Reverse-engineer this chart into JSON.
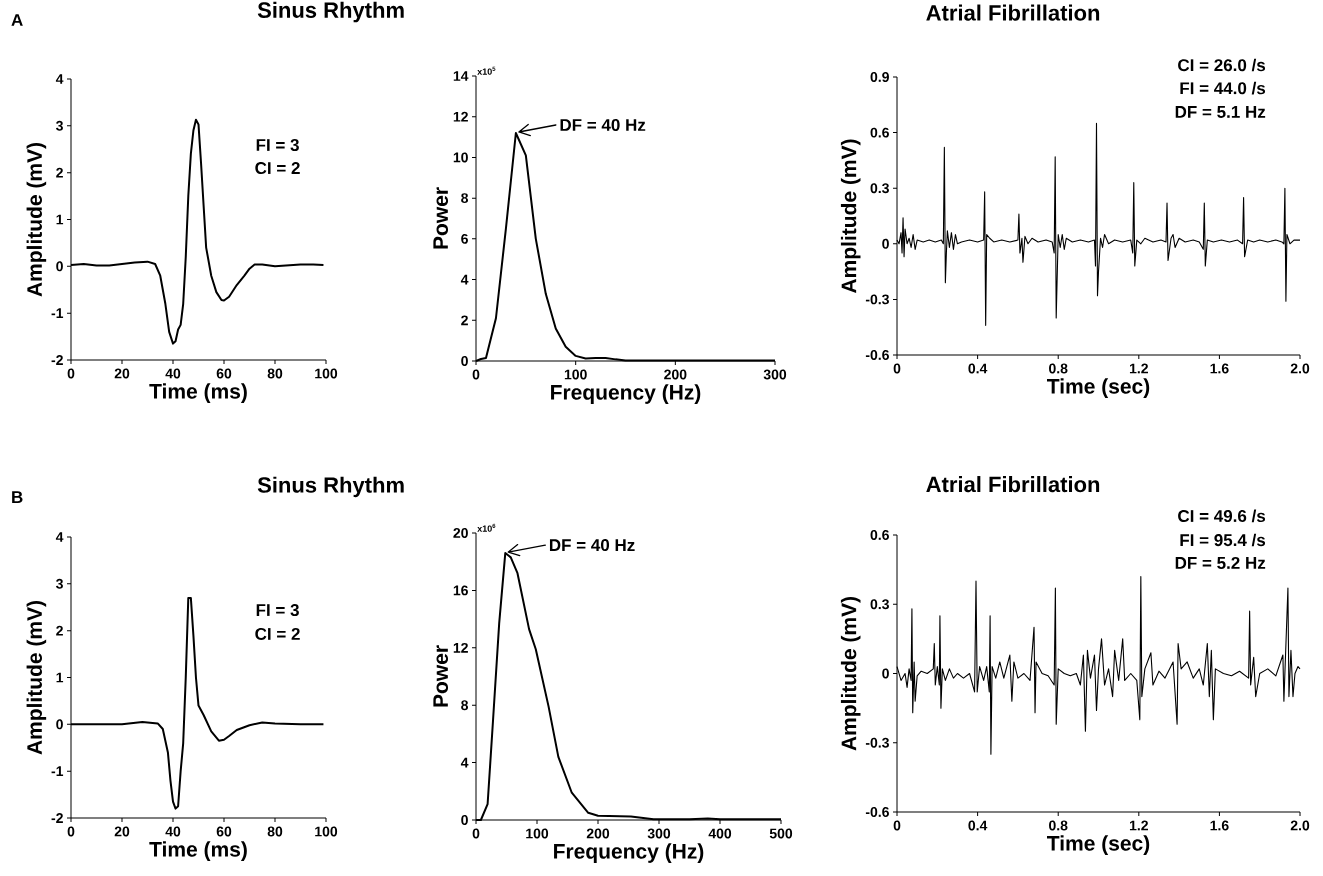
{
  "chart_data": [
    {
      "type": "line",
      "title": "Sinus Rhythm",
      "xlabel": "Time (ms)",
      "ylabel": "Amplitude (mV)",
      "annotations": [
        "A",
        "FI = 3",
        "CI = 2"
      ],
      "color": "#000000",
      "xlim": [
        0,
        100
      ],
      "ylim": [
        -2,
        4
      ],
      "xticks": [
        0,
        20,
        40,
        60,
        80,
        100
      ],
      "yticks": [
        -2,
        -1,
        0,
        1,
        2,
        3,
        4
      ],
      "x": [
        0,
        5,
        10,
        15,
        20,
        25,
        30,
        33,
        35,
        37,
        38.5,
        40,
        41,
        42,
        43,
        44,
        45,
        46,
        47,
        48,
        49,
        50,
        51,
        52,
        53,
        55,
        57,
        59,
        60,
        62,
        65,
        68,
        70,
        72,
        75,
        80,
        85,
        90,
        95,
        99
      ],
      "values": [
        0.03,
        0.05,
        0.02,
        0.02,
        0.05,
        0.08,
        0.1,
        0.05,
        -0.2,
        -0.8,
        -1.4,
        -1.65,
        -1.6,
        -1.35,
        -1.25,
        -0.8,
        0.2,
        1.5,
        2.4,
        2.9,
        3.13,
        3.03,
        2.2,
        1.3,
        0.4,
        -0.2,
        -0.55,
        -0.72,
        -0.73,
        -0.65,
        -0.4,
        -0.2,
        -0.05,
        0.04,
        0.04,
        0.0,
        0.02,
        0.04,
        0.04,
        0.03
      ]
    },
    {
      "type": "line",
      "xlabel": "Frequency (Hz)",
      "ylabel": "Power",
      "annotations": [
        "x10$^{5}$",
        {
          "text": "DF = 40 Hz",
          "x": 40,
          "y": 11.2
        }
      ],
      "color": "#000000",
      "xlim": [
        0,
        300
      ],
      "ylim": [
        0,
        14
      ],
      "xticks": [
        0,
        100,
        200,
        300
      ],
      "yticks": [
        0,
        2,
        4,
        6,
        8,
        10,
        12,
        14
      ],
      "x": [
        0,
        5,
        10,
        20,
        30,
        40,
        50,
        60,
        70,
        80,
        90,
        100,
        110,
        120,
        130,
        140,
        150,
        200,
        300
      ],
      "values": [
        0,
        0.1,
        0.15,
        2.1,
        6.5,
        11.2,
        10.1,
        6.0,
        3.3,
        1.6,
        0.7,
        0.25,
        0.12,
        0.15,
        0.15,
        0.08,
        0.03,
        0.02,
        0.02
      ]
    },
    {
      "type": "line",
      "title": "Atrial Fibrillation",
      "xlabel": "Time (sec)",
      "ylabel": "Amplitude (mV)",
      "annotations": [
        "CI = 26.0 /s",
        "FI = 44.0 /s",
        "DF = 5.1 Hz"
      ],
      "color": "#000000",
      "xlim": [
        0,
        2
      ],
      "ylim": [
        -0.6,
        0.9
      ],
      "xticks": [
        0,
        0.4,
        0.8,
        1.2,
        1.6,
        {
          "value": 2,
          "label": "2.0"
        }
      ],
      "yticks": [
        -0.6,
        -0.3,
        0,
        0.3,
        0.6,
        0.9
      ],
      "x": [
        0.0,
        0.01,
        0.02,
        0.025,
        0.03,
        0.035,
        0.04,
        0.05,
        0.06,
        0.07,
        0.08,
        0.09,
        0.1,
        0.13,
        0.16,
        0.19,
        0.22,
        0.23,
        0.235,
        0.24,
        0.245,
        0.25,
        0.26,
        0.27,
        0.28,
        0.29,
        0.3,
        0.32,
        0.36,
        0.4,
        0.43,
        0.435,
        0.44,
        0.445,
        0.46,
        0.48,
        0.52,
        0.56,
        0.6,
        0.605,
        0.61,
        0.62,
        0.625,
        0.635,
        0.65,
        0.67,
        0.7,
        0.74,
        0.77,
        0.78,
        0.785,
        0.79,
        0.8,
        0.81,
        0.82,
        0.83,
        0.84,
        0.87,
        0.91,
        0.95,
        0.98,
        0.985,
        0.99,
        0.995,
        1.0,
        1.01,
        1.02,
        1.03,
        1.05,
        1.08,
        1.12,
        1.16,
        1.17,
        1.175,
        1.18,
        1.19,
        1.21,
        1.23,
        1.27,
        1.31,
        1.335,
        1.34,
        1.345,
        1.36,
        1.37,
        1.38,
        1.4,
        1.43,
        1.47,
        1.5,
        1.52,
        1.525,
        1.53,
        1.54,
        1.57,
        1.61,
        1.65,
        1.69,
        1.715,
        1.72,
        1.725,
        1.74,
        1.77,
        1.8,
        1.84,
        1.88,
        1.91,
        1.92,
        1.925,
        1.93,
        1.935,
        1.95,
        1.97,
        2.0
      ],
      "values": [
        0.02,
        0.0,
        0.06,
        -0.05,
        0.14,
        -0.07,
        0.08,
        0.0,
        0.03,
        -0.02,
        0.05,
        -0.03,
        0.02,
        0.01,
        0.02,
        0.01,
        0.02,
        0.0,
        0.52,
        -0.21,
        -0.05,
        0.07,
        -0.02,
        0.06,
        -0.03,
        0.05,
        0.0,
        0.01,
        0.02,
        0.01,
        0.02,
        0.28,
        -0.44,
        0.05,
        0.03,
        0.01,
        0.02,
        0.01,
        0.02,
        0.16,
        -0.05,
        0.03,
        -0.1,
        0.04,
        0.0,
        0.03,
        0.01,
        0.02,
        0.01,
        -0.05,
        0.47,
        -0.4,
        0.05,
        -0.02,
        0.05,
        -0.03,
        0.03,
        0.01,
        0.02,
        0.01,
        0.02,
        -0.12,
        0.65,
        -0.28,
        -0.15,
        0.03,
        -0.02,
        0.05,
        0.0,
        0.02,
        0.01,
        0.02,
        -0.05,
        0.33,
        -0.12,
        0.02,
        0.0,
        0.03,
        0.01,
        0.02,
        0.01,
        0.22,
        -0.09,
        0.03,
        0.05,
        -0.02,
        0.03,
        0.01,
        0.02,
        0.01,
        -0.03,
        0.22,
        -0.12,
        0.02,
        0.01,
        0.02,
        0.01,
        0.02,
        0.0,
        0.25,
        -0.07,
        0.02,
        0.01,
        0.02,
        0.01,
        0.02,
        0.01,
        0.0,
        0.3,
        -0.31,
        0.05,
        0.0,
        0.02,
        0.02
      ]
    },
    {
      "type": "line",
      "title": "Sinus Rhythm",
      "xlabel": "Time (ms)",
      "ylabel": "Amplitude (mV)",
      "annotations": [
        "B",
        "FI = 3",
        "CI = 2"
      ],
      "color": "#000000",
      "xlim": [
        0,
        100
      ],
      "ylim": [
        -2,
        4
      ],
      "xticks": [
        0,
        20,
        40,
        60,
        80,
        100
      ],
      "yticks": [
        -2,
        -1,
        0,
        1,
        2,
        3,
        4
      ],
      "x": [
        0,
        10,
        20,
        28,
        34,
        36,
        38,
        39,
        40,
        41,
        42,
        43,
        44,
        45,
        46,
        47,
        48,
        49,
        50,
        52,
        55,
        58,
        60,
        62,
        65,
        70,
        75,
        80,
        90,
        99
      ],
      "values": [
        0,
        0,
        0,
        0.05,
        0.02,
        -0.1,
        -0.6,
        -1.2,
        -1.65,
        -1.8,
        -1.75,
        -1.0,
        -0.4,
        1.0,
        2.7,
        2.7,
        1.9,
        1.0,
        0.4,
        0.2,
        -0.15,
        -0.35,
        -0.33,
        -0.25,
        -0.12,
        -0.02,
        0.04,
        0.02,
        0,
        0
      ]
    },
    {
      "type": "line",
      "xlabel": "Frequency (Hz)",
      "ylabel": "Power",
      "annotations": [
        "x10$^{6}$",
        {
          "text": "DF = 40 Hz",
          "x": 48,
          "y": 18.6
        }
      ],
      "color": "#000000",
      "xlim": [
        0,
        500
      ],
      "ylim": [
        0,
        20
      ],
      "xticks": [
        0,
        100,
        200,
        300,
        400,
        500
      ],
      "yticks": [
        0,
        4,
        8,
        12,
        16,
        20
      ],
      "x": [
        0,
        8,
        19,
        28,
        38,
        48,
        57,
        68,
        87,
        98,
        119,
        135,
        157,
        184,
        200,
        254,
        291,
        350,
        380,
        400,
        500
      ],
      "values": [
        0,
        0,
        1.1,
        7,
        13.7,
        18.6,
        18.3,
        17.2,
        13.3,
        11.9,
        7.9,
        4.4,
        1.9,
        0.5,
        0.3,
        0.25,
        0.05,
        0.05,
        0.1,
        0.05,
        0.05
      ]
    },
    {
      "type": "line",
      "title": "Atrial Fibrillation",
      "xlabel": "Time (sec)",
      "ylabel": "Amplitude (mV)",
      "annotations": [
        "CI = 49.6 /s",
        "FI = 95.4 /s",
        "DF = 5.2 Hz"
      ],
      "color": "#000000",
      "xlim": [
        0,
        2
      ],
      "ylim": [
        -0.6,
        0.6
      ],
      "xticks": [
        0,
        0.4,
        0.8,
        1.2,
        1.6,
        {
          "value": 2,
          "label": "2.0"
        }
      ],
      "yticks": [
        -0.6,
        -0.3,
        0,
        0.3,
        0.6
      ],
      "x": [
        0.0,
        0.01,
        0.02,
        0.04,
        0.05,
        0.06,
        0.07,
        0.074,
        0.078,
        0.085,
        0.09,
        0.1,
        0.12,
        0.15,
        0.18,
        0.185,
        0.19,
        0.2,
        0.21,
        0.213,
        0.218,
        0.225,
        0.24,
        0.26,
        0.28,
        0.3,
        0.33,
        0.36,
        0.385,
        0.392,
        0.398,
        0.41,
        0.43,
        0.445,
        0.458,
        0.462,
        0.466,
        0.472,
        0.49,
        0.51,
        0.53,
        0.56,
        0.57,
        0.58,
        0.6,
        0.63,
        0.66,
        0.68,
        0.685,
        0.69,
        0.72,
        0.75,
        0.78,
        0.786,
        0.79,
        0.8,
        0.83,
        0.86,
        0.89,
        0.91,
        0.925,
        0.935,
        0.945,
        0.96,
        0.98,
        0.99,
        1.0,
        1.015,
        1.03,
        1.05,
        1.07,
        1.08,
        1.1,
        1.12,
        1.13,
        1.16,
        1.19,
        1.205,
        1.21,
        1.215,
        1.23,
        1.26,
        1.27,
        1.3,
        1.33,
        1.37,
        1.39,
        1.395,
        1.41,
        1.44,
        1.47,
        1.5,
        1.52,
        1.54,
        1.55,
        1.56,
        1.57,
        1.58,
        1.62,
        1.66,
        1.7,
        1.745,
        1.75,
        1.755,
        1.77,
        1.78,
        1.8,
        1.84,
        1.88,
        1.915,
        1.92,
        1.94,
        1.945,
        1.955,
        1.965,
        1.975,
        1.99,
        2.0
      ],
      "values": [
        0.03,
        0.0,
        -0.03,
        0.0,
        -0.06,
        0.02,
        -0.03,
        0.28,
        -0.17,
        0.05,
        -0.12,
        -0.01,
        0.01,
        0.0,
        0.02,
        0.13,
        -0.05,
        0.03,
        -0.05,
        0.25,
        -0.15,
        0.02,
        -0.03,
        0.02,
        -0.02,
        0.0,
        -0.02,
        0.0,
        -0.08,
        0.4,
        -0.08,
        0.03,
        -0.03,
        0.03,
        -0.08,
        0.25,
        -0.35,
        0.03,
        -0.02,
        0.05,
        -0.02,
        0.08,
        -0.12,
        0.05,
        -0.02,
        0.0,
        -0.03,
        0.2,
        -0.17,
        0.05,
        0.0,
        -0.01,
        -0.05,
        0.37,
        -0.22,
        0.02,
        0.0,
        -0.01,
        0.0,
        -0.05,
        0.08,
        -0.25,
        0.1,
        -0.02,
        0.08,
        -0.16,
        0.02,
        0.15,
        -0.05,
        0.02,
        -0.1,
        0.1,
        -0.03,
        0.15,
        -0.03,
        0.0,
        -0.03,
        -0.2,
        0.42,
        -0.1,
        0.02,
        0.09,
        -0.05,
        0.01,
        -0.02,
        0.05,
        -0.22,
        0.13,
        0.02,
        0.05,
        -0.02,
        0.02,
        -0.05,
        0.13,
        -0.1,
        0.1,
        -0.2,
        0.02,
        0.0,
        -0.01,
        0.01,
        -0.02,
        0.27,
        -0.05,
        0.07,
        -0.1,
        0.0,
        0.02,
        -0.01,
        0.08,
        -0.12,
        0.37,
        -0.1,
        0.1,
        -0.1,
        0.0,
        0.03,
        0.02
      ]
    }
  ]
}
